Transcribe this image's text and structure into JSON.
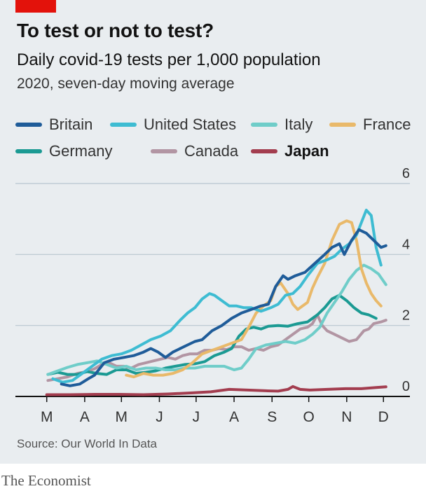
{
  "header": {
    "title": "To test or not to test?",
    "subtitle": "Daily covid-19 tests per 1,000 population",
    "note": "2020, seven-day moving average"
  },
  "footer": {
    "source": "Source: Our World In Data",
    "brand": "The Economist"
  },
  "colors": {
    "accent": "#e3120b",
    "panel": "#e9edf0"
  },
  "chart_data": {
    "type": "line",
    "x_axis": {
      "tick_labels": [
        "M",
        "A",
        "M",
        "J",
        "J",
        "A",
        "S",
        "O",
        "N",
        "D"
      ],
      "tick_days": [
        61,
        92,
        122,
        153,
        183,
        214,
        245,
        275,
        306,
        336
      ],
      "range_days": [
        60,
        340
      ]
    },
    "y_axis": {
      "tick_labels": [
        "0",
        "2",
        "4",
        "6"
      ],
      "ticks": [
        0,
        2,
        4,
        6
      ],
      "range": [
        0,
        6
      ],
      "side": "right"
    },
    "grid": true,
    "legend": "top",
    "series": [
      {
        "name": "Britain",
        "color": "#1f5c99",
        "points": [
          [
            73,
            0.35
          ],
          [
            80,
            0.3
          ],
          [
            88,
            0.35
          ],
          [
            95,
            0.5
          ],
          [
            100,
            0.6
          ],
          [
            108,
            0.95
          ],
          [
            116,
            1.05
          ],
          [
            124,
            1.1
          ],
          [
            132,
            1.15
          ],
          [
            140,
            1.25
          ],
          [
            146,
            1.35
          ],
          [
            152,
            1.25
          ],
          [
            158,
            1.1
          ],
          [
            164,
            1.25
          ],
          [
            170,
            1.35
          ],
          [
            176,
            1.45
          ],
          [
            182,
            1.55
          ],
          [
            188,
            1.6
          ],
          [
            196,
            1.85
          ],
          [
            204,
            2.0
          ],
          [
            212,
            2.2
          ],
          [
            220,
            2.35
          ],
          [
            228,
            2.45
          ],
          [
            236,
            2.55
          ],
          [
            242,
            2.6
          ],
          [
            248,
            3.1
          ],
          [
            254,
            3.4
          ],
          [
            258,
            3.3
          ],
          [
            264,
            3.4
          ],
          [
            272,
            3.5
          ],
          [
            280,
            3.75
          ],
          [
            288,
            4.0
          ],
          [
            294,
            4.2
          ],
          [
            300,
            4.3
          ],
          [
            304,
            4.0
          ],
          [
            310,
            4.4
          ],
          [
            316,
            4.7
          ],
          [
            322,
            4.6
          ],
          [
            328,
            4.4
          ],
          [
            334,
            4.2
          ],
          [
            338,
            4.25
          ]
        ]
      },
      {
        "name": "United States",
        "color": "#3ebcd2",
        "points": [
          [
            66,
            0.5
          ],
          [
            74,
            0.4
          ],
          [
            82,
            0.45
          ],
          [
            90,
            0.65
          ],
          [
            98,
            0.85
          ],
          [
            106,
            1.05
          ],
          [
            114,
            1.15
          ],
          [
            122,
            1.2
          ],
          [
            130,
            1.3
          ],
          [
            138,
            1.45
          ],
          [
            146,
            1.6
          ],
          [
            154,
            1.7
          ],
          [
            162,
            1.85
          ],
          [
            170,
            2.15
          ],
          [
            176,
            2.35
          ],
          [
            182,
            2.5
          ],
          [
            188,
            2.75
          ],
          [
            194,
            2.9
          ],
          [
            198,
            2.85
          ],
          [
            204,
            2.7
          ],
          [
            210,
            2.55
          ],
          [
            216,
            2.55
          ],
          [
            222,
            2.5
          ],
          [
            228,
            2.5
          ],
          [
            236,
            2.4
          ],
          [
            244,
            2.5
          ],
          [
            250,
            2.6
          ],
          [
            256,
            2.85
          ],
          [
            262,
            2.9
          ],
          [
            268,
            3.1
          ],
          [
            274,
            3.4
          ],
          [
            282,
            3.75
          ],
          [
            290,
            3.85
          ],
          [
            296,
            3.95
          ],
          [
            302,
            4.15
          ],
          [
            308,
            4.3
          ],
          [
            314,
            4.55
          ],
          [
            318,
            4.9
          ],
          [
            322,
            5.25
          ],
          [
            326,
            5.1
          ],
          [
            330,
            4.2
          ],
          [
            334,
            3.7
          ]
        ]
      },
      {
        "name": "Italy",
        "color": "#6fcdc9",
        "points": [
          [
            62,
            0.62
          ],
          [
            70,
            0.72
          ],
          [
            78,
            0.82
          ],
          [
            86,
            0.9
          ],
          [
            94,
            0.95
          ],
          [
            102,
            1.0
          ],
          [
            110,
            0.9
          ],
          [
            118,
            0.8
          ],
          [
            126,
            0.85
          ],
          [
            134,
            0.75
          ],
          [
            142,
            0.8
          ],
          [
            150,
            0.8
          ],
          [
            158,
            0.75
          ],
          [
            166,
            0.75
          ],
          [
            174,
            0.8
          ],
          [
            182,
            0.8
          ],
          [
            190,
            0.85
          ],
          [
            198,
            0.85
          ],
          [
            206,
            0.85
          ],
          [
            214,
            0.75
          ],
          [
            220,
            0.8
          ],
          [
            226,
            1.05
          ],
          [
            232,
            1.35
          ],
          [
            240,
            1.45
          ],
          [
            248,
            1.5
          ],
          [
            256,
            1.55
          ],
          [
            264,
            1.5
          ],
          [
            272,
            1.6
          ],
          [
            278,
            1.75
          ],
          [
            284,
            1.95
          ],
          [
            290,
            2.35
          ],
          [
            296,
            2.65
          ],
          [
            302,
            2.95
          ],
          [
            308,
            3.3
          ],
          [
            314,
            3.55
          ],
          [
            320,
            3.7
          ],
          [
            326,
            3.6
          ],
          [
            332,
            3.45
          ],
          [
            338,
            3.15
          ]
        ]
      },
      {
        "name": "France",
        "color": "#e9b96a",
        "points": [
          [
            126,
            0.6
          ],
          [
            132,
            0.55
          ],
          [
            140,
            0.65
          ],
          [
            148,
            0.6
          ],
          [
            156,
            0.6
          ],
          [
            164,
            0.65
          ],
          [
            172,
            0.75
          ],
          [
            180,
            0.95
          ],
          [
            188,
            1.2
          ],
          [
            196,
            1.3
          ],
          [
            204,
            1.4
          ],
          [
            212,
            1.5
          ],
          [
            220,
            1.6
          ],
          [
            226,
            1.95
          ],
          [
            232,
            2.35
          ],
          [
            238,
            2.55
          ],
          [
            244,
            2.7
          ],
          [
            248,
            3.1
          ],
          [
            252,
            3.2
          ],
          [
            258,
            2.9
          ],
          [
            262,
            2.6
          ],
          [
            266,
            2.45
          ],
          [
            270,
            2.55
          ],
          [
            274,
            2.65
          ],
          [
            278,
            3.05
          ],
          [
            282,
            3.35
          ],
          [
            288,
            3.75
          ],
          [
            294,
            4.4
          ],
          [
            300,
            4.85
          ],
          [
            306,
            4.95
          ],
          [
            310,
            4.9
          ],
          [
            314,
            4.4
          ],
          [
            318,
            3.6
          ],
          [
            322,
            3.2
          ],
          [
            326,
            2.9
          ],
          [
            330,
            2.7
          ],
          [
            334,
            2.55
          ]
        ]
      },
      {
        "name": "Germany",
        "color": "#1b9a93",
        "points": [
          [
            62,
            0.62
          ],
          [
            70,
            0.68
          ],
          [
            78,
            0.62
          ],
          [
            86,
            0.62
          ],
          [
            94,
            0.7
          ],
          [
            102,
            0.65
          ],
          [
            110,
            0.62
          ],
          [
            118,
            0.75
          ],
          [
            126,
            0.75
          ],
          [
            134,
            0.65
          ],
          [
            142,
            0.68
          ],
          [
            150,
            0.72
          ],
          [
            158,
            0.8
          ],
          [
            166,
            0.85
          ],
          [
            174,
            0.9
          ],
          [
            182,
            0.92
          ],
          [
            190,
            0.98
          ],
          [
            198,
            1.15
          ],
          [
            206,
            1.25
          ],
          [
            212,
            1.35
          ],
          [
            218,
            1.7
          ],
          [
            224,
            1.9
          ],
          [
            230,
            1.95
          ],
          [
            236,
            1.9
          ],
          [
            242,
            1.98
          ],
          [
            250,
            2.0
          ],
          [
            258,
            1.98
          ],
          [
            266,
            2.05
          ],
          [
            274,
            2.1
          ],
          [
            282,
            2.3
          ],
          [
            288,
            2.5
          ],
          [
            294,
            2.75
          ],
          [
            300,
            2.85
          ],
          [
            306,
            2.7
          ],
          [
            312,
            2.5
          ],
          [
            318,
            2.35
          ],
          [
            324,
            2.3
          ],
          [
            330,
            2.2
          ]
        ]
      },
      {
        "name": "Canada",
        "color": "#b295a3",
        "points": [
          [
            62,
            0.45
          ],
          [
            70,
            0.5
          ],
          [
            78,
            0.55
          ],
          [
            86,
            0.65
          ],
          [
            94,
            0.7
          ],
          [
            100,
            0.78
          ],
          [
            106,
            0.9
          ],
          [
            112,
            0.95
          ],
          [
            118,
            0.85
          ],
          [
            124,
            0.85
          ],
          [
            130,
            0.8
          ],
          [
            136,
            0.9
          ],
          [
            142,
            0.95
          ],
          [
            148,
            1.0
          ],
          [
            154,
            1.05
          ],
          [
            160,
            1.1
          ],
          [
            166,
            1.05
          ],
          [
            172,
            1.15
          ],
          [
            178,
            1.2
          ],
          [
            184,
            1.2
          ],
          [
            190,
            1.3
          ],
          [
            196,
            1.3
          ],
          [
            202,
            1.35
          ],
          [
            208,
            1.32
          ],
          [
            214,
            1.4
          ],
          [
            220,
            1.4
          ],
          [
            226,
            1.3
          ],
          [
            232,
            1.35
          ],
          [
            238,
            1.3
          ],
          [
            244,
            1.4
          ],
          [
            250,
            1.45
          ],
          [
            256,
            1.6
          ],
          [
            262,
            1.75
          ],
          [
            268,
            1.9
          ],
          [
            274,
            1.95
          ],
          [
            278,
            2.05
          ],
          [
            282,
            2.3
          ],
          [
            286,
            2.0
          ],
          [
            290,
            1.85
          ],
          [
            296,
            1.75
          ],
          [
            302,
            1.65
          ],
          [
            308,
            1.55
          ],
          [
            314,
            1.6
          ],
          [
            320,
            1.85
          ],
          [
            324,
            1.9
          ],
          [
            328,
            2.05
          ],
          [
            334,
            2.1
          ],
          [
            338,
            2.15
          ]
        ]
      },
      {
        "name": "Japan",
        "color": "#a33d4f",
        "points": [
          [
            61,
            0.05
          ],
          [
            80,
            0.05
          ],
          [
            100,
            0.06
          ],
          [
            120,
            0.06
          ],
          [
            140,
            0.05
          ],
          [
            160,
            0.07
          ],
          [
            180,
            0.1
          ],
          [
            195,
            0.13
          ],
          [
            210,
            0.2
          ],
          [
            225,
            0.18
          ],
          [
            240,
            0.16
          ],
          [
            250,
            0.15
          ],
          [
            258,
            0.2
          ],
          [
            262,
            0.28
          ],
          [
            268,
            0.2
          ],
          [
            276,
            0.18
          ],
          [
            290,
            0.2
          ],
          [
            305,
            0.22
          ],
          [
            318,
            0.22
          ],
          [
            330,
            0.25
          ],
          [
            338,
            0.27
          ]
        ]
      }
    ]
  }
}
